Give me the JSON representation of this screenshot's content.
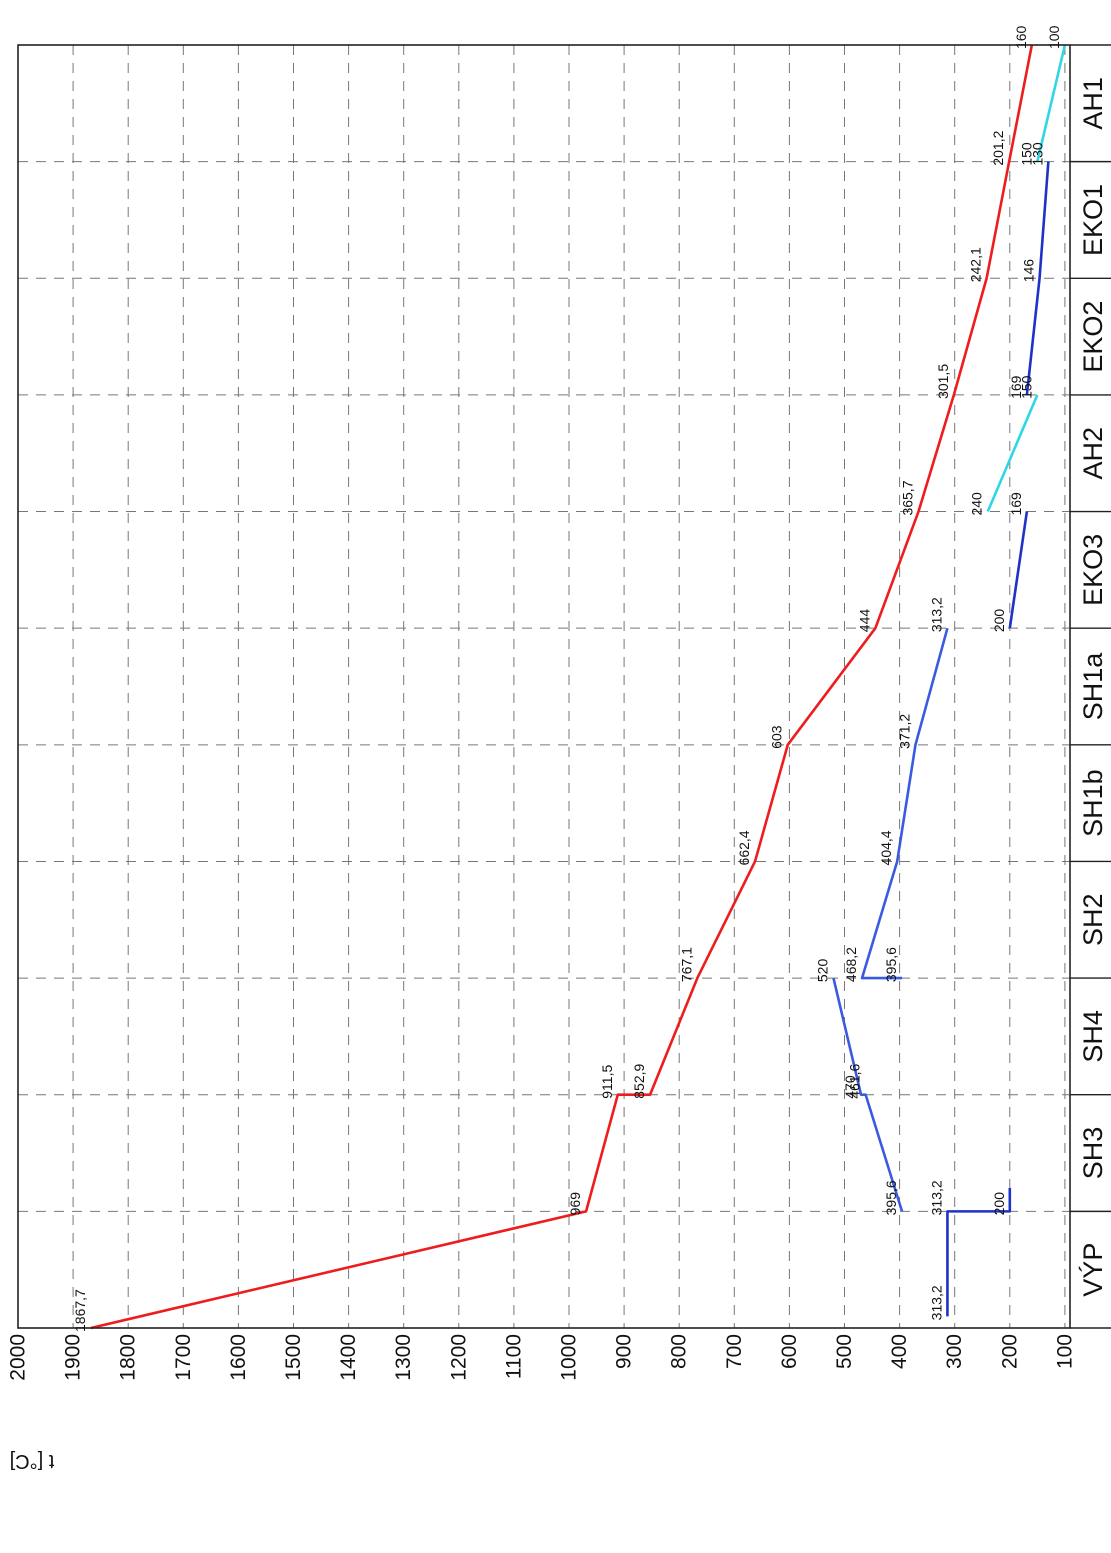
{
  "chart_data": {
    "type": "line",
    "title": "",
    "ylabel": "t [°C]",
    "xlabel": "",
    "ylim": [
      0,
      2000
    ],
    "yticks": [
      2000,
      1900,
      1800,
      1700,
      1600,
      1500,
      1400,
      1300,
      1200,
      1100,
      1000,
      900,
      800,
      700,
      600,
      500,
      400,
      300,
      200,
      100
    ],
    "grid": true,
    "categories": [
      "VÝP",
      "SH3",
      "SH4",
      "SH2",
      "SH1b",
      "SH1a",
      "EKO3",
      "AH2",
      "EKO2",
      "EKO1",
      "AH1"
    ],
    "category_boundaries": [
      0,
      1,
      2,
      3,
      4,
      5,
      6,
      7,
      8,
      9,
      10,
      11
    ],
    "series": [
      {
        "color": "#ee1c1c",
        "points": [
          {
            "x": 0,
            "y": 1867.7,
            "label": "1867,7"
          },
          {
            "x": 1,
            "y": 969,
            "label": "969"
          },
          {
            "x": 2,
            "y": 911.5,
            "label": "911,5"
          },
          {
            "x": 2,
            "y": 852.9,
            "label": "852,9"
          },
          {
            "x": 3,
            "y": 767.1,
            "label": "767,1"
          },
          {
            "x": 4,
            "y": 662.4,
            "label": "662,4"
          },
          {
            "x": 5,
            "y": 603,
            "label": "603"
          },
          {
            "x": 6,
            "y": 444,
            "label": "444"
          },
          {
            "x": 7,
            "y": 365.7,
            "label": "365,7"
          },
          {
            "x": 8,
            "y": 301.5,
            "label": "301,5"
          },
          {
            "x": 9,
            "y": 242.1,
            "label": "242,1"
          },
          {
            "x": 10,
            "y": 201.2,
            "label": "201,2"
          },
          {
            "x": 11,
            "y": 160,
            "label": "160"
          }
        ]
      },
      {
        "color": "#1f32c8",
        "points": [
          {
            "x": 0.1,
            "y": 313.2,
            "label": "313,2"
          },
          {
            "x": 1,
            "y": 313.2,
            "label": "313,2"
          },
          {
            "x": 1,
            "y": 200,
            "label": "200"
          },
          {
            "x": 1.2,
            "y": 200,
            "label": ""
          }
        ]
      },
      {
        "color": "#3a5ae0",
        "points": [
          {
            "x": 1,
            "y": 395.6,
            "label": "395,6"
          },
          {
            "x": 2,
            "y": 461.6,
            "label": "461,6"
          },
          {
            "x": 2,
            "y": 470,
            "label": "470"
          },
          {
            "x": 3,
            "y": 520,
            "label": "520"
          }
        ]
      },
      {
        "color": "#3a5ae0",
        "points": [
          {
            "x": 3,
            "y": 395.6,
            "label": "395,6"
          },
          {
            "x": 3,
            "y": 468.2,
            "label": "468,2"
          },
          {
            "x": 4,
            "y": 404.4,
            "label": "404,4"
          },
          {
            "x": 5,
            "y": 371.2,
            "label": "371,2"
          },
          {
            "x": 6,
            "y": 313.2,
            "label": "313,2"
          }
        ]
      },
      {
        "color": "#1f32c8",
        "points": [
          {
            "x": 6,
            "y": 200,
            "label": "200"
          },
          {
            "x": 7,
            "y": 169,
            "label": "169"
          }
        ]
      },
      {
        "color": "#2ed6e6",
        "points": [
          {
            "x": 7,
            "y": 240,
            "label": "240"
          },
          {
            "x": 8,
            "y": 150,
            "label": "150"
          }
        ]
      },
      {
        "color": "#1f32c8",
        "points": [
          {
            "x": 8,
            "y": 169,
            "label": "169"
          },
          {
            "x": 9,
            "y": 146,
            "label": "146"
          },
          {
            "x": 10,
            "y": 130,
            "label": "130"
          }
        ]
      },
      {
        "color": "#2ed6e6",
        "points": [
          {
            "x": 10,
            "y": 150,
            "label": "150"
          },
          {
            "x": 11,
            "y": 100,
            "label": "100"
          }
        ]
      }
    ]
  }
}
